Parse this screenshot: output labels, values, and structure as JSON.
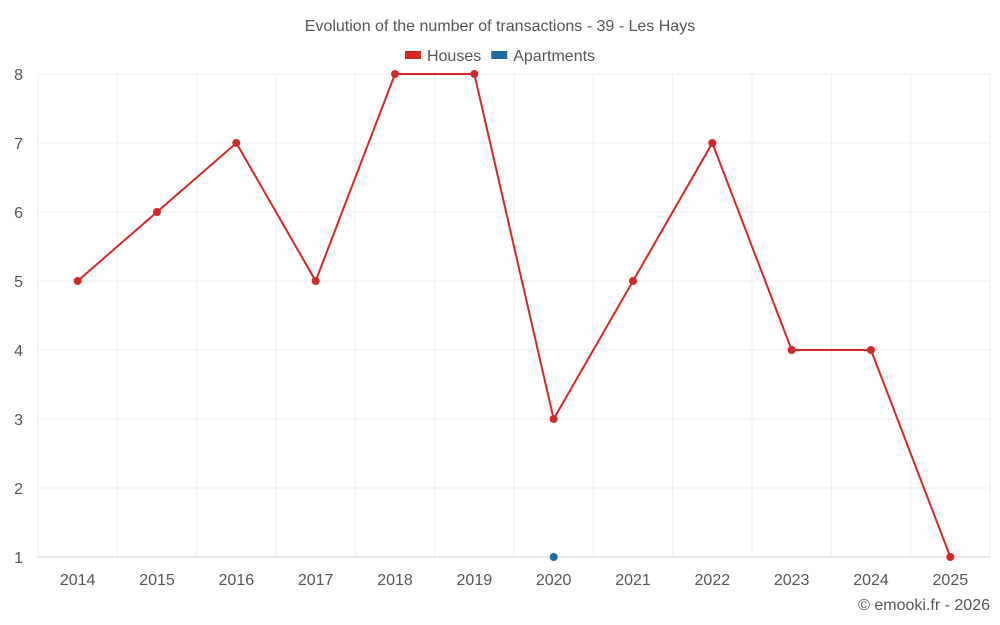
{
  "chart_data": {
    "type": "line",
    "title": "Evolution of the number of transactions - 39 - Les Hays",
    "categories": [
      "2014",
      "2015",
      "2016",
      "2017",
      "2018",
      "2019",
      "2020",
      "2021",
      "2022",
      "2023",
      "2024",
      "2025"
    ],
    "ylim": [
      1,
      8
    ],
    "yticks": [
      1,
      2,
      3,
      4,
      5,
      6,
      7,
      8
    ],
    "grid": true,
    "legend_position": "top",
    "series": [
      {
        "name": "Houses",
        "color": "#d62728",
        "values": [
          5,
          6,
          7,
          5,
          8,
          8,
          3,
          5,
          7,
          4,
          4,
          1
        ]
      },
      {
        "name": "Apartments",
        "color": "#1f6aa5",
        "values": [
          null,
          null,
          null,
          null,
          null,
          null,
          1,
          null,
          null,
          null,
          null,
          null
        ]
      }
    ],
    "xlabel": "",
    "ylabel": ""
  },
  "credit": "© emooki.fr - 2026"
}
